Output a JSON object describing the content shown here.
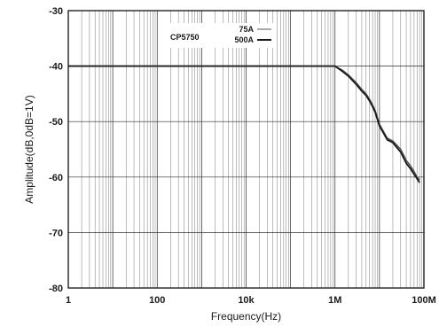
{
  "chart_data": {
    "type": "line",
    "xlabel": "Frequency(Hz)",
    "ylabel": "Amplitude(dB,0dB=1V)",
    "x_scale": "log",
    "xlim": [
      1,
      100000000
    ],
    "ylim": [
      -80,
      -30
    ],
    "x_ticks": [
      {
        "value": 1,
        "label": "1"
      },
      {
        "value": 100,
        "label": "100"
      },
      {
        "value": 10000,
        "label": "10k"
      },
      {
        "value": 1000000,
        "label": "1M"
      },
      {
        "value": 100000000,
        "label": "100M"
      }
    ],
    "y_ticks": [
      -30,
      -40,
      -50,
      -60,
      -70,
      -80
    ],
    "grid": true,
    "legend": {
      "title": "CP5750",
      "placement": "top-left",
      "entries": [
        "75A",
        "500A"
      ]
    },
    "series": [
      {
        "name": "75A",
        "color": "#555555",
        "x": [
          1,
          10,
          100,
          1000,
          10000,
          100000,
          1000000,
          1500000,
          2000000,
          3000000,
          4000000,
          5000000,
          6000000,
          7000000,
          8000000,
          10000000,
          15000000,
          20000000,
          30000000,
          40000000,
          50000000,
          60000000,
          70000000,
          80000000
        ],
        "y": [
          -40,
          -40,
          -40,
          -40,
          -40,
          -40,
          -40,
          -40.8,
          -41.6,
          -43,
          -44.2,
          -45,
          -46,
          -47,
          -48,
          -50.5,
          -53,
          -53.5,
          -55,
          -57,
          -58,
          -59,
          -60,
          -60.5
        ]
      },
      {
        "name": "500A",
        "color": "#1a1a1a",
        "x": [
          1,
          10,
          100,
          1000,
          10000,
          100000,
          1000000,
          1500000,
          2000000,
          3000000,
          4000000,
          5000000,
          6000000,
          7000000,
          8000000,
          10000000,
          15000000,
          20000000,
          30000000,
          40000000,
          50000000,
          60000000,
          70000000,
          80000000
        ],
        "y": [
          -40,
          -40,
          -40,
          -40,
          -40,
          -40,
          -40,
          -41,
          -41.8,
          -43.3,
          -44.5,
          -45.3,
          -46.3,
          -47.3,
          -48.3,
          -50.8,
          -53.3,
          -53.8,
          -55.5,
          -57.5,
          -58.5,
          -59.5,
          -60.3,
          -61
        ]
      }
    ]
  }
}
